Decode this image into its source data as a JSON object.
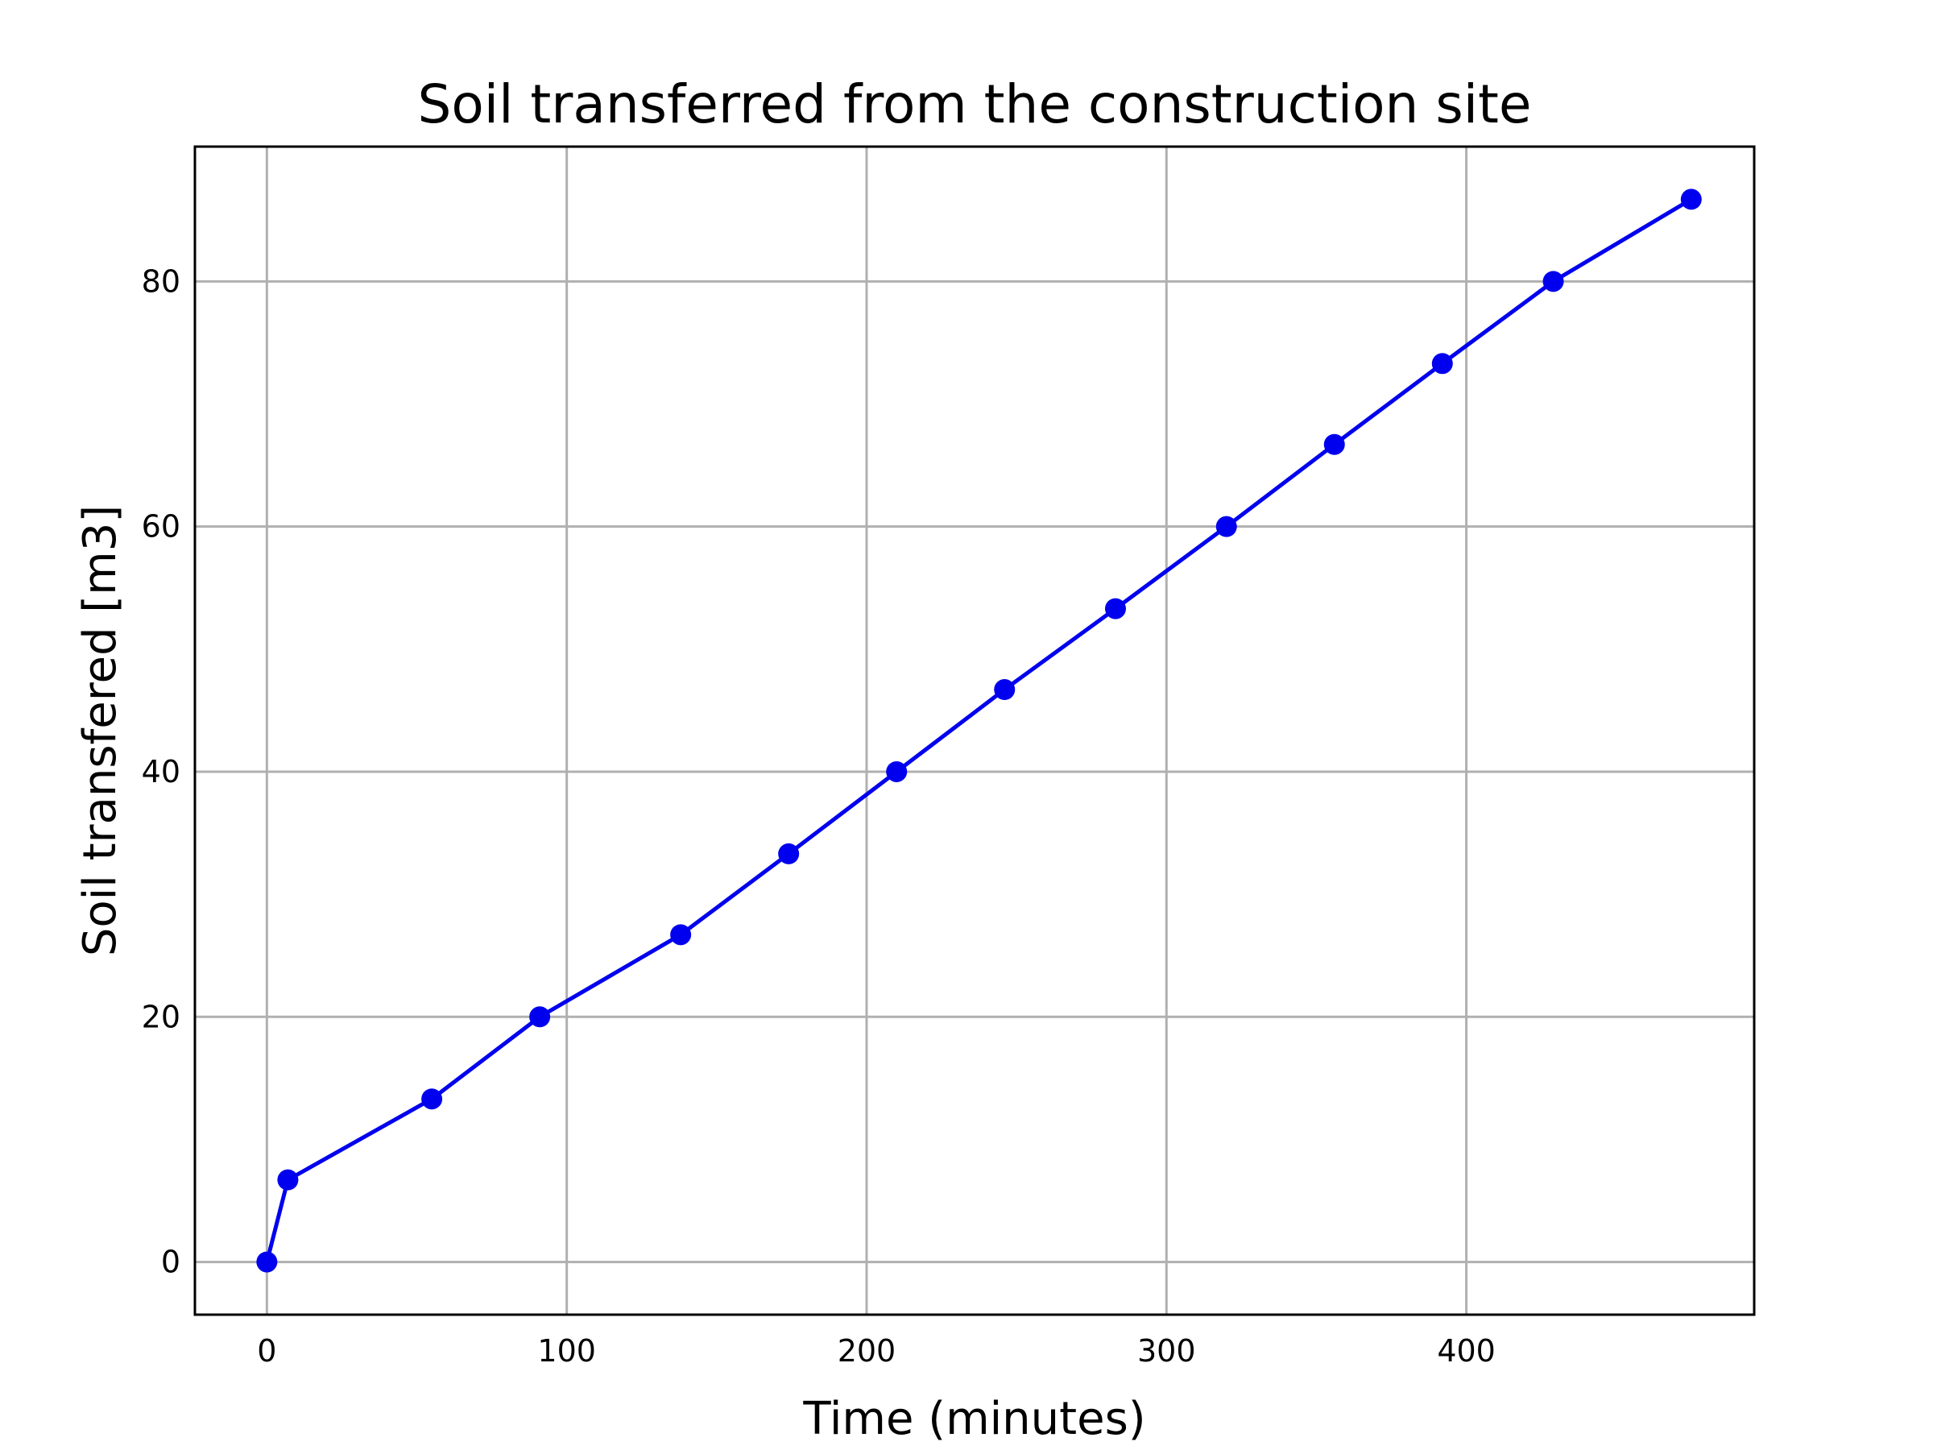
{
  "chart_data": {
    "type": "line",
    "title": "Soil transferred from the construction site",
    "xlabel": "Time (minutes)",
    "ylabel": "Soil transfered [m3]",
    "xlim": [
      -24,
      496
    ],
    "ylim": [
      -4.3,
      91
    ],
    "xticks": [
      0,
      100,
      200,
      300,
      400
    ],
    "yticks": [
      0,
      20,
      40,
      60,
      80
    ],
    "grid": true,
    "legend": "none",
    "series": [
      {
        "color": "#0000ee",
        "marker": "circle",
        "points": [
          {
            "x": 0,
            "y": 0
          },
          {
            "x": 7,
            "y": 6.7
          },
          {
            "x": 55,
            "y": 13.3
          },
          {
            "x": 91,
            "y": 20
          },
          {
            "x": 138,
            "y": 26.7
          },
          {
            "x": 174,
            "y": 33.3
          },
          {
            "x": 210,
            "y": 40
          },
          {
            "x": 246,
            "y": 46.7
          },
          {
            "x": 283,
            "y": 53.3
          },
          {
            "x": 320,
            "y": 60
          },
          {
            "x": 356,
            "y": 66.7
          },
          {
            "x": 392,
            "y": 73.3
          },
          {
            "x": 429,
            "y": 80
          },
          {
            "x": 475,
            "y": 86.7
          }
        ]
      }
    ]
  }
}
